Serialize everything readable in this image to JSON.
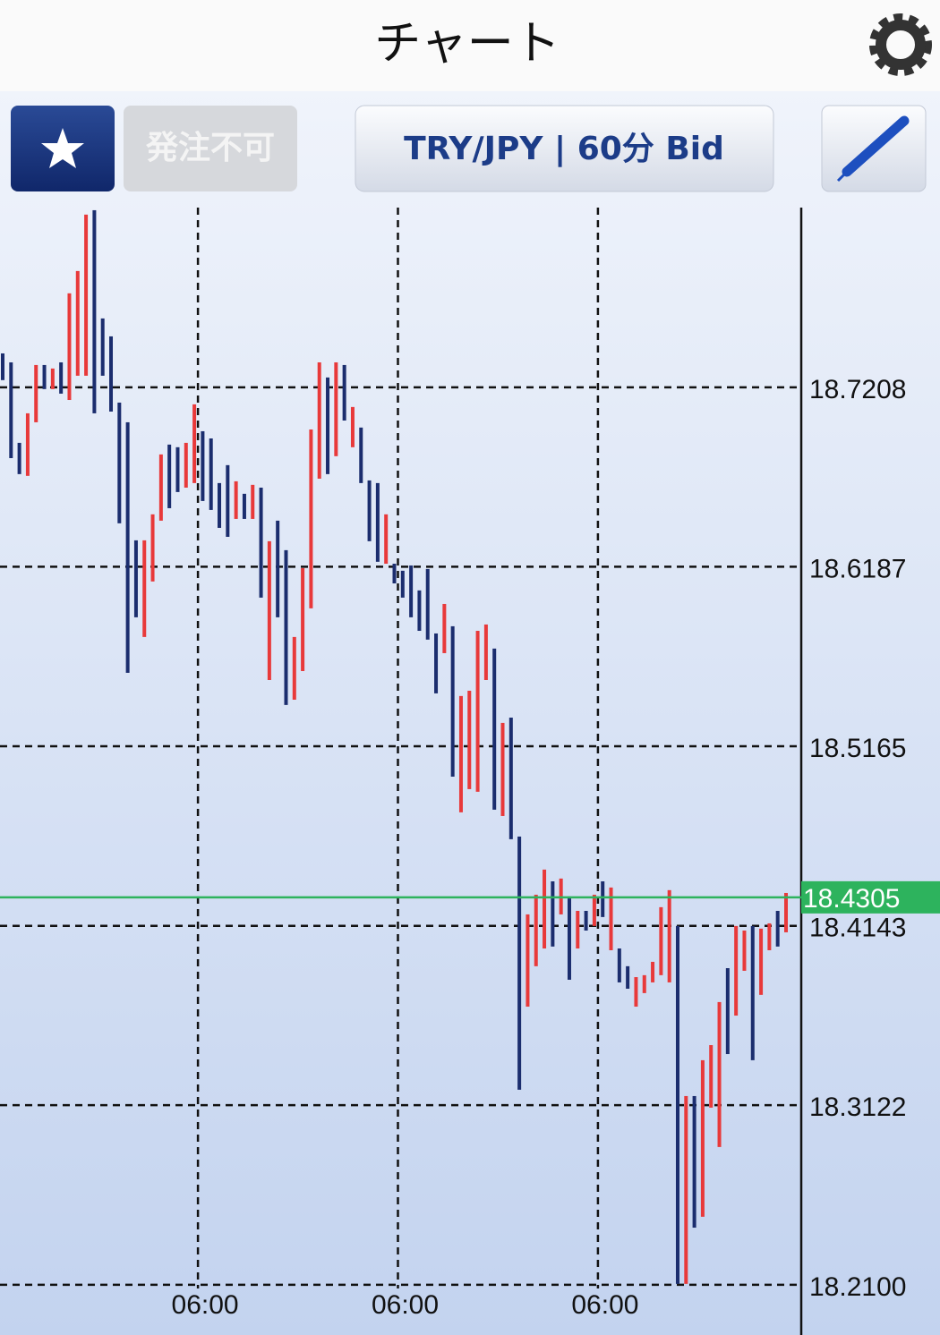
{
  "header": {
    "title": "チャート"
  },
  "toolbar": {
    "order_button": "発注不可",
    "symbol_button": "TRY/JPY | 60分 Bid"
  },
  "chart_data": {
    "type": "candlestick",
    "categories": [
      null,
      null,
      null,
      null,
      null,
      null,
      null,
      null,
      null,
      null,
      null,
      null,
      null,
      null,
      null,
      null,
      null,
      null,
      null,
      null,
      null,
      null,
      null,
      "06:00",
      null,
      null,
      null,
      null,
      null,
      null,
      null,
      null,
      null,
      null,
      null,
      null,
      null,
      null,
      null,
      null,
      null,
      null,
      null,
      null,
      null,
      null,
      null,
      "06:00",
      null,
      null,
      null,
      null,
      null,
      null,
      null,
      null,
      null,
      null,
      null,
      null,
      null,
      null,
      null,
      null,
      null,
      null,
      null,
      null,
      null,
      null,
      null,
      "06:00",
      null,
      null,
      null,
      null,
      null,
      null,
      null,
      null,
      null,
      null,
      null,
      null,
      null,
      null,
      null,
      null,
      null,
      null,
      null,
      null,
      null,
      null,
      null
    ],
    "open": [
      18.7401,
      18.735,
      18.6892,
      18.6704,
      18.7009,
      18.7335,
      18.7198,
      18.735,
      18.7136,
      18.7274,
      18.7274,
      18.8216,
      18.76,
      18.7498,
      18.7121,
      18.7009,
      18.6337,
      18.5787,
      18.6103,
      18.6449,
      18.6882,
      18.6867,
      18.6637,
      18.6663,
      18.6958,
      18.6917,
      18.6663,
      18.6765,
      18.6459,
      18.6602,
      18.6459,
      18.6637,
      18.5542,
      18.6449,
      18.6281,
      18.543,
      18.5593,
      18.595,
      18.6688,
      18.7264,
      18.6816,
      18.7335,
      18.6867,
      18.6979,
      18.6678,
      18.6663,
      18.6204,
      18.6204,
      18.6164,
      18.6194,
      18.6052,
      18.6174,
      18.5807,
      18.5695,
      18.5848,
      18.4789,
      18.4921,
      18.4906,
      18.5542,
      18.5721,
      18.4768,
      18.5328,
      18.4651,
      18.3683,
      18.3913,
      18.4014,
      18.4396,
      18.4208,
      18.431,
      18.4014,
      18.4228,
      18.4142,
      18.4396,
      18.4004,
      18.4014,
      18.3913,
      18.3683,
      18.376,
      18.3821,
      18.3862,
      18.3821,
      18.4142,
      18.2105,
      18.3174,
      18.2487,
      18.3108,
      18.2884,
      18.3902,
      18.3632,
      18.3887,
      18.4142,
      18.375,
      18.4004,
      18.4228,
      18.4106
    ],
    "close": [
      18.7249,
      18.6805,
      18.6714,
      18.706,
      18.7335,
      18.7198,
      18.7315,
      18.7172,
      18.7743,
      18.787,
      18.8191,
      18.706,
      18.7274,
      18.707,
      18.6434,
      18.5583,
      18.5899,
      18.6337,
      18.6485,
      18.6826,
      18.652,
      18.6612,
      18.6892,
      18.7111,
      18.6561,
      18.651,
      18.6408,
      18.6357,
      18.6673,
      18.6459,
      18.6653,
      18.6011,
      18.6332,
      18.5899,
      18.54,
      18.5787,
      18.6179,
      18.6968,
      18.735,
      18.6714,
      18.735,
      18.7019,
      18.7096,
      18.6663,
      18.6332,
      18.6215,
      18.6485,
      18.6092,
      18.6011,
      18.5899,
      18.5822,
      18.5772,
      18.5466,
      18.5975,
      18.4992,
      18.5451,
      18.5481,
      18.5822,
      18.5858,
      18.4804,
      18.5298,
      18.4636,
      18.321,
      18.4208,
      18.432,
      18.4463,
      18.4025,
      18.4412,
      18.3836,
      18.4228,
      18.4116,
      18.432,
      18.4193,
      18.4361,
      18.3821,
      18.3785,
      18.3851,
      18.3862,
      18.3938,
      18.4249,
      18.4346,
      18.2105,
      18.3174,
      18.2425,
      18.3378,
      18.3464,
      18.3709,
      18.3413,
      18.4142,
      18.4116,
      18.3378,
      18.4127,
      18.4157,
      18.4025,
      18.433
    ],
    "up_color": "#e8393a",
    "down_color": "#1b2d6e",
    "ylim": [
      18.1814,
      18.8231
    ],
    "yticks": [
      {
        "value": 18.21,
        "label": "18.2100"
      },
      18.3122,
      18.4143,
      18.5165,
      18.6187,
      18.7208
    ],
    "current_price": 18.4305,
    "current_price_color": "#2db35d",
    "grid": true
  }
}
